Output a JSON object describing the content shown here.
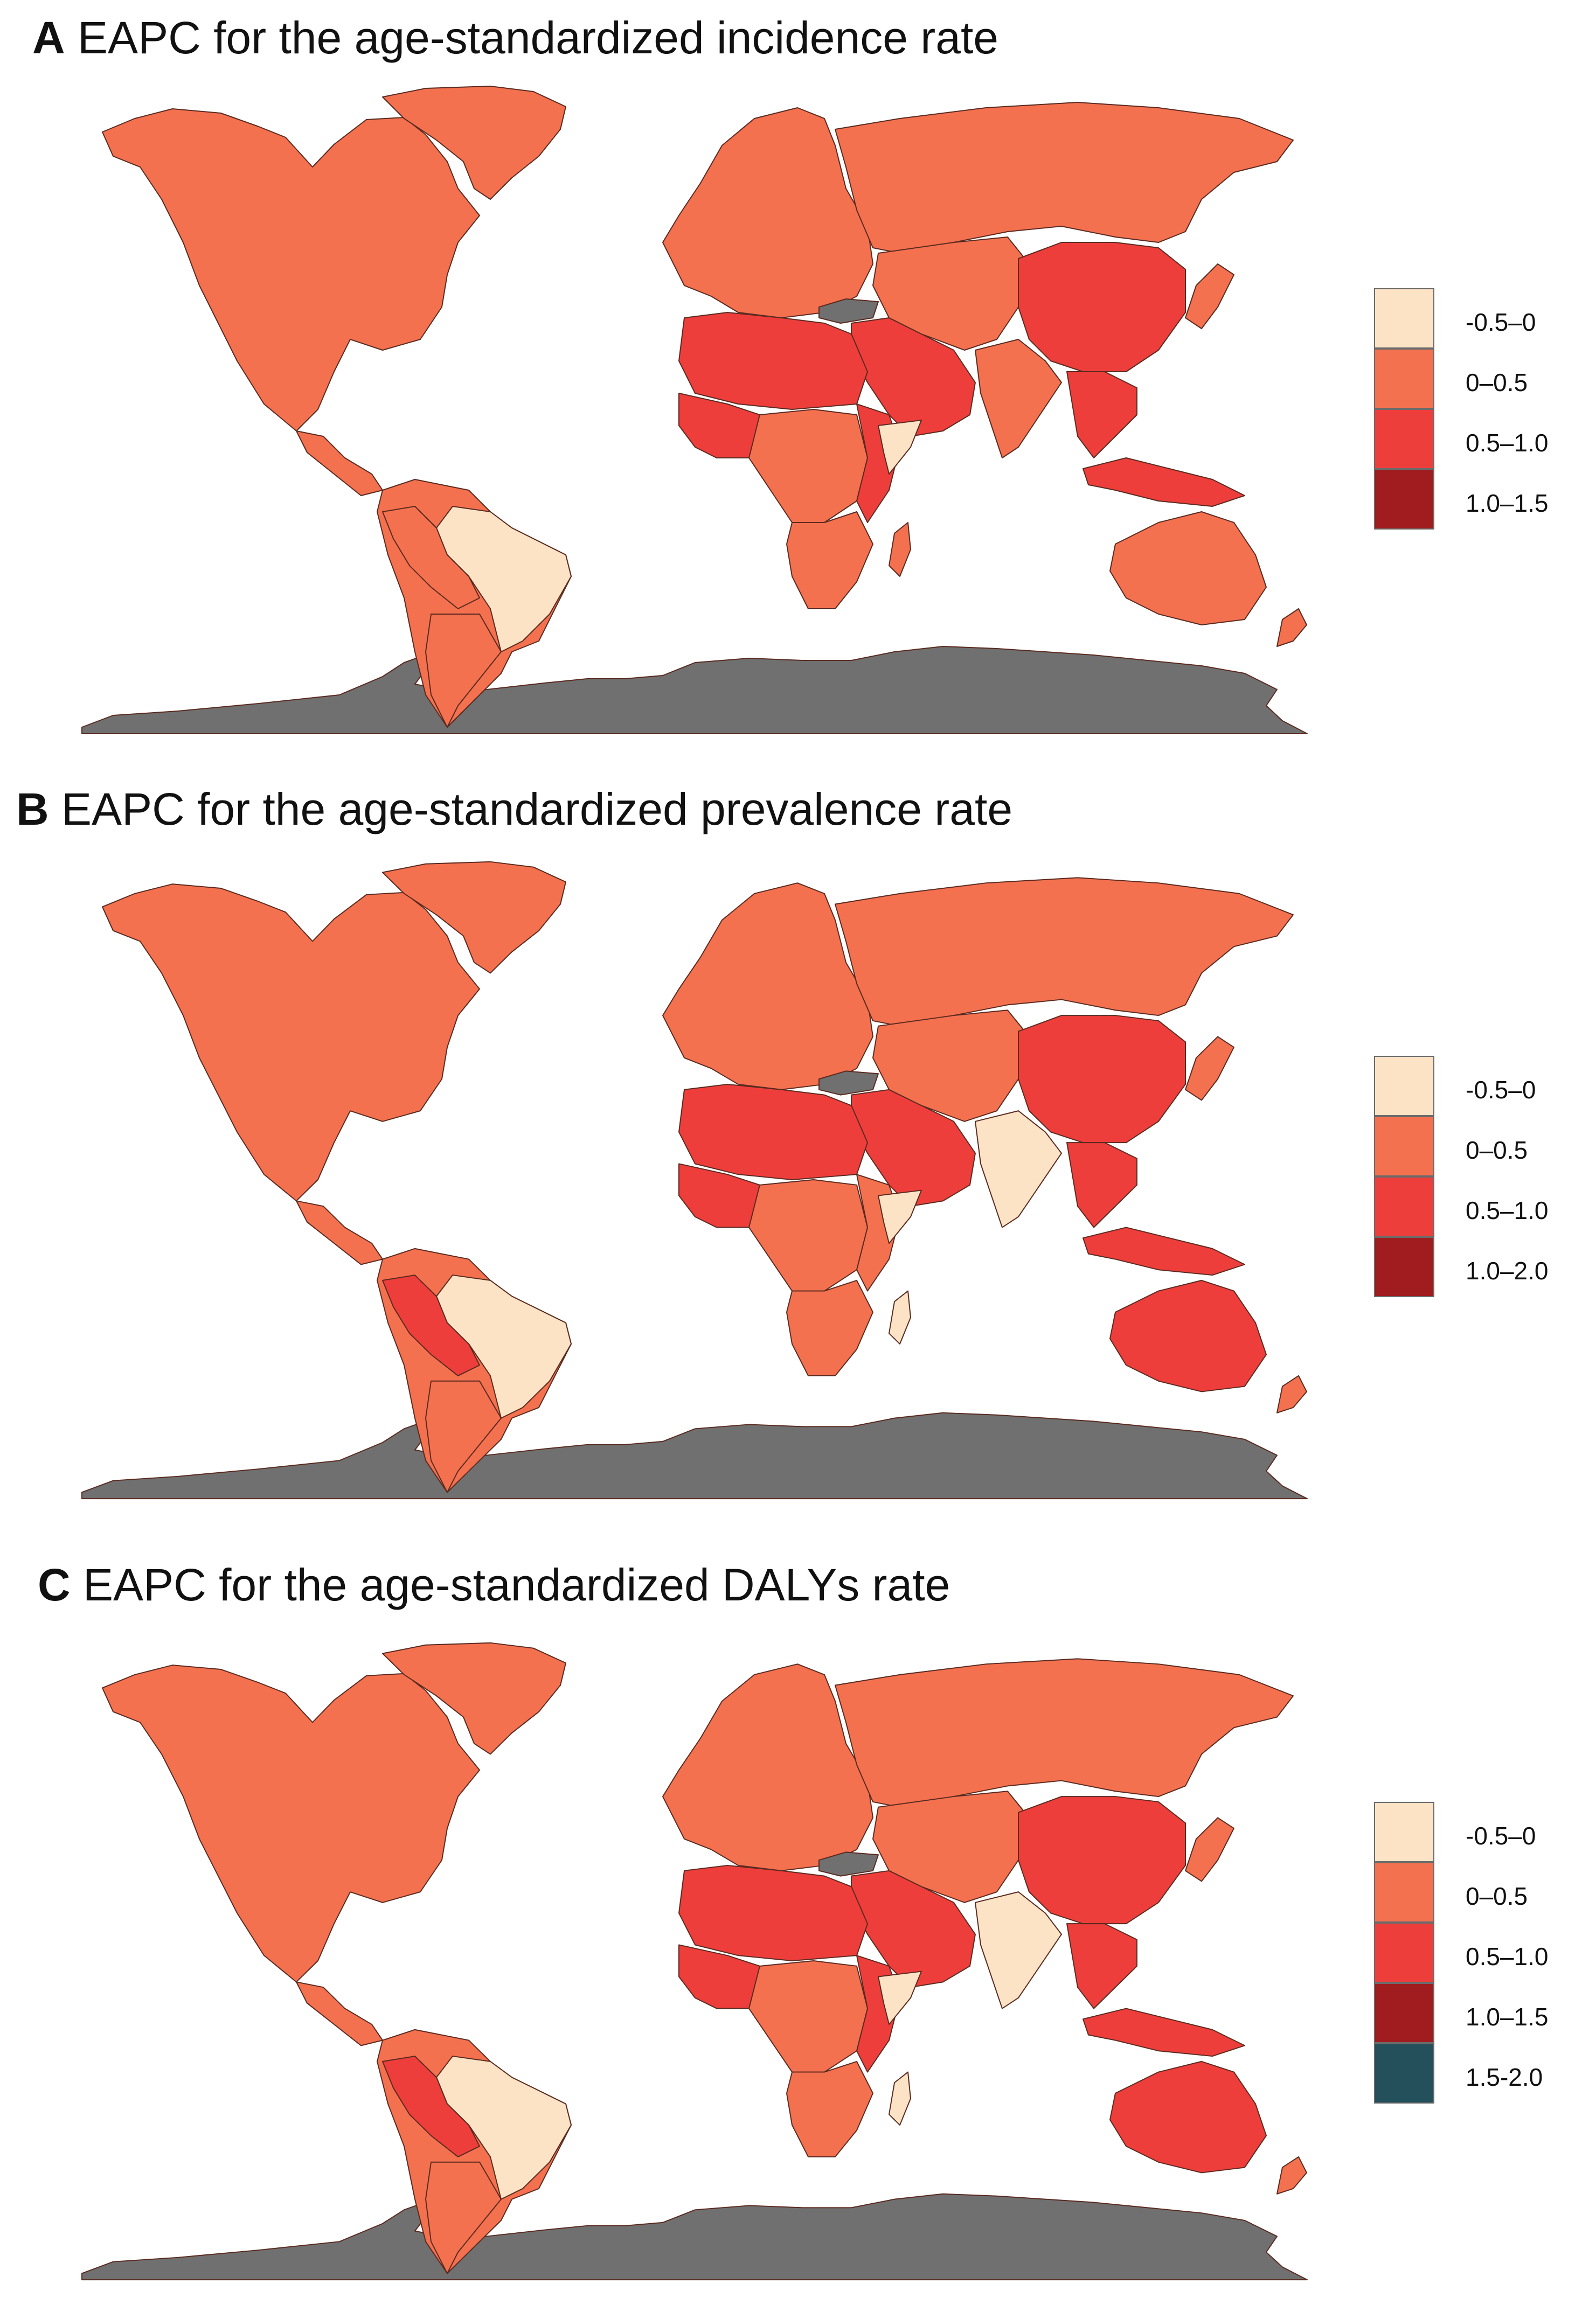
{
  "colors": {
    "c1": "#fde3c5",
    "c2": "#f4714f",
    "c3": "#ee3e3b",
    "c4": "#a01c1e",
    "c5": "#24505b",
    "nodata": "#707070",
    "border": "#5a2a20"
  },
  "panels": [
    {
      "letter": "A",
      "title": "EAPC for the age-standardized incidence rate",
      "legend": [
        {
          "label": "-0.5–0",
          "color": "#fde3c5"
        },
        {
          "label": "0–0.5",
          "color": "#f4714f"
        },
        {
          "label": "0.5–1.0",
          "color": "#ee3e3b"
        },
        {
          "label": "1.0–1.5",
          "color": "#a01c1e"
        }
      ],
      "regions": {
        "north_america": "c2",
        "greenland": "c2",
        "central_america": "c2",
        "south_america": "c2",
        "brazil": "c1",
        "peru_bolivia": "c2",
        "argentina": "c2",
        "europe": "c2",
        "russia": "c2",
        "north_africa": "c3",
        "west_africa": "c3",
        "central_africa": "c2",
        "east_africa": "c3",
        "somalia": "c1",
        "southern_africa": "c2",
        "madagascar": "c2",
        "middle_east": "c3",
        "central_asia": "c2",
        "india": "c2",
        "china": "c3",
        "southeast_asia": "c3",
        "japan_korea": "c2",
        "indonesia": "c3",
        "australia": "c2",
        "new_zealand": "c2",
        "black_sea": "nodata",
        "antarctica": "nodata"
      }
    },
    {
      "letter": "B",
      "title": "EAPC for the age-standardized prevalence rate",
      "legend": [
        {
          "label": "-0.5–0",
          "color": "#fde3c5"
        },
        {
          "label": "0–0.5",
          "color": "#f4714f"
        },
        {
          "label": "0.5–1.0",
          "color": "#ee3e3b"
        },
        {
          "label": "1.0–2.0",
          "color": "#a01c1e"
        }
      ],
      "regions": {
        "north_america": "c2",
        "greenland": "c2",
        "central_america": "c2",
        "south_america": "c2",
        "brazil": "c1",
        "peru_bolivia": "c3",
        "argentina": "c2",
        "europe": "c2",
        "russia": "c2",
        "north_africa": "c3",
        "west_africa": "c3",
        "central_africa": "c2",
        "east_africa": "c2",
        "somalia": "c1",
        "southern_africa": "c2",
        "madagascar": "c1",
        "middle_east": "c3",
        "central_asia": "c2",
        "india": "c1",
        "china": "c3",
        "southeast_asia": "c3",
        "japan_korea": "c2",
        "indonesia": "c3",
        "australia": "c3",
        "new_zealand": "c2",
        "black_sea": "nodata",
        "antarctica": "nodata"
      }
    },
    {
      "letter": "C",
      "title": "EAPC for the age-standardized DALYs rate",
      "legend": [
        {
          "label": "-0.5–0",
          "color": "#fde3c5"
        },
        {
          "label": "0–0.5",
          "color": "#f4714f"
        },
        {
          "label": "0.5–1.0",
          "color": "#ee3e3b"
        },
        {
          "label": "1.0–1.5",
          "color": "#a01c1e"
        },
        {
          "label": "1.5-2.0",
          "color": "#24505b"
        }
      ],
      "regions": {
        "north_america": "c2",
        "greenland": "c2",
        "central_america": "c2",
        "south_america": "c2",
        "brazil": "c1",
        "peru_bolivia": "c3",
        "argentina": "c2",
        "europe": "c2",
        "russia": "c2",
        "north_africa": "c3",
        "west_africa": "c3",
        "central_africa": "c2",
        "east_africa": "c3",
        "somalia": "c1",
        "southern_africa": "c2",
        "madagascar": "c1",
        "middle_east": "c3",
        "central_asia": "c2",
        "india": "c1",
        "china": "c3",
        "southeast_asia": "c3",
        "japan_korea": "c2",
        "indonesia": "c3",
        "australia": "c3",
        "new_zealand": "c2",
        "black_sea": "nodata",
        "antarctica": "nodata"
      }
    }
  ]
}
